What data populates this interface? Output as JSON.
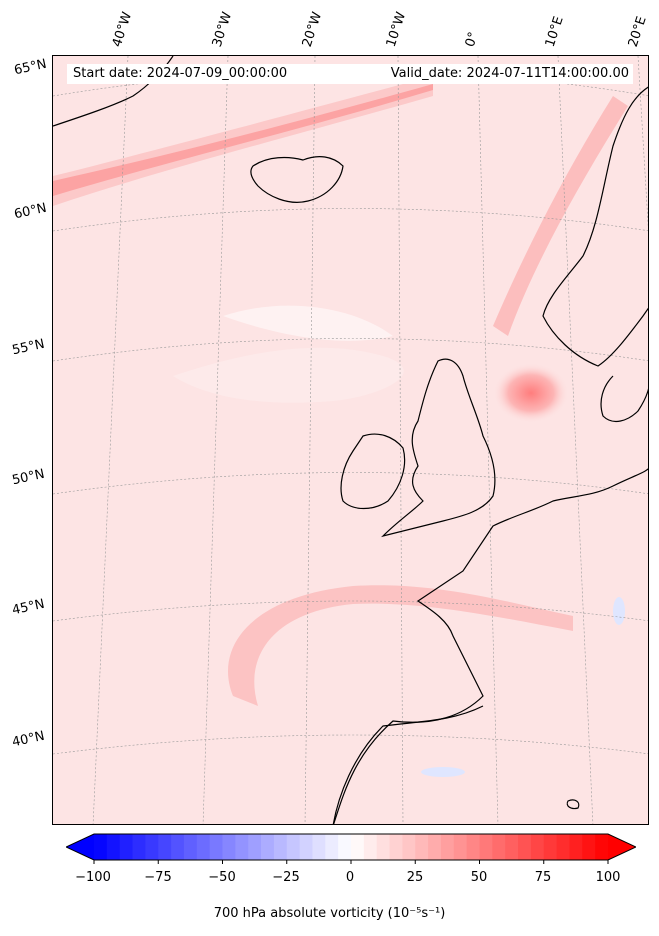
{
  "header": {
    "start_date": "Start date: 2024-07-09_00:00:00",
    "valid_date": "Valid_date: 2024-07-11T14:00:00.00"
  },
  "map": {
    "lon_labels": [
      "40°W",
      "30°W",
      "20°W",
      "10°W",
      "0°",
      "10°E",
      "20°E"
    ],
    "lat_labels": [
      "65°N",
      "60°N",
      "55°N",
      "50°N",
      "45°N",
      "40°N"
    ],
    "field": "700 hPa absolute vorticity",
    "colors": {
      "background": "#fde4e4",
      "strong": "#ff8a8a",
      "weak_negative": "#dfe6ff",
      "coastline": "#000000"
    }
  },
  "colorbar": {
    "title": "700 hPa absolute vorticity (10⁻⁵s⁻¹)",
    "ticks": [
      "−100",
      "−75",
      "−50",
      "−25",
      "0",
      "25",
      "50",
      "75",
      "100"
    ],
    "min": -100,
    "max": 100,
    "colormap": "bwr"
  }
}
